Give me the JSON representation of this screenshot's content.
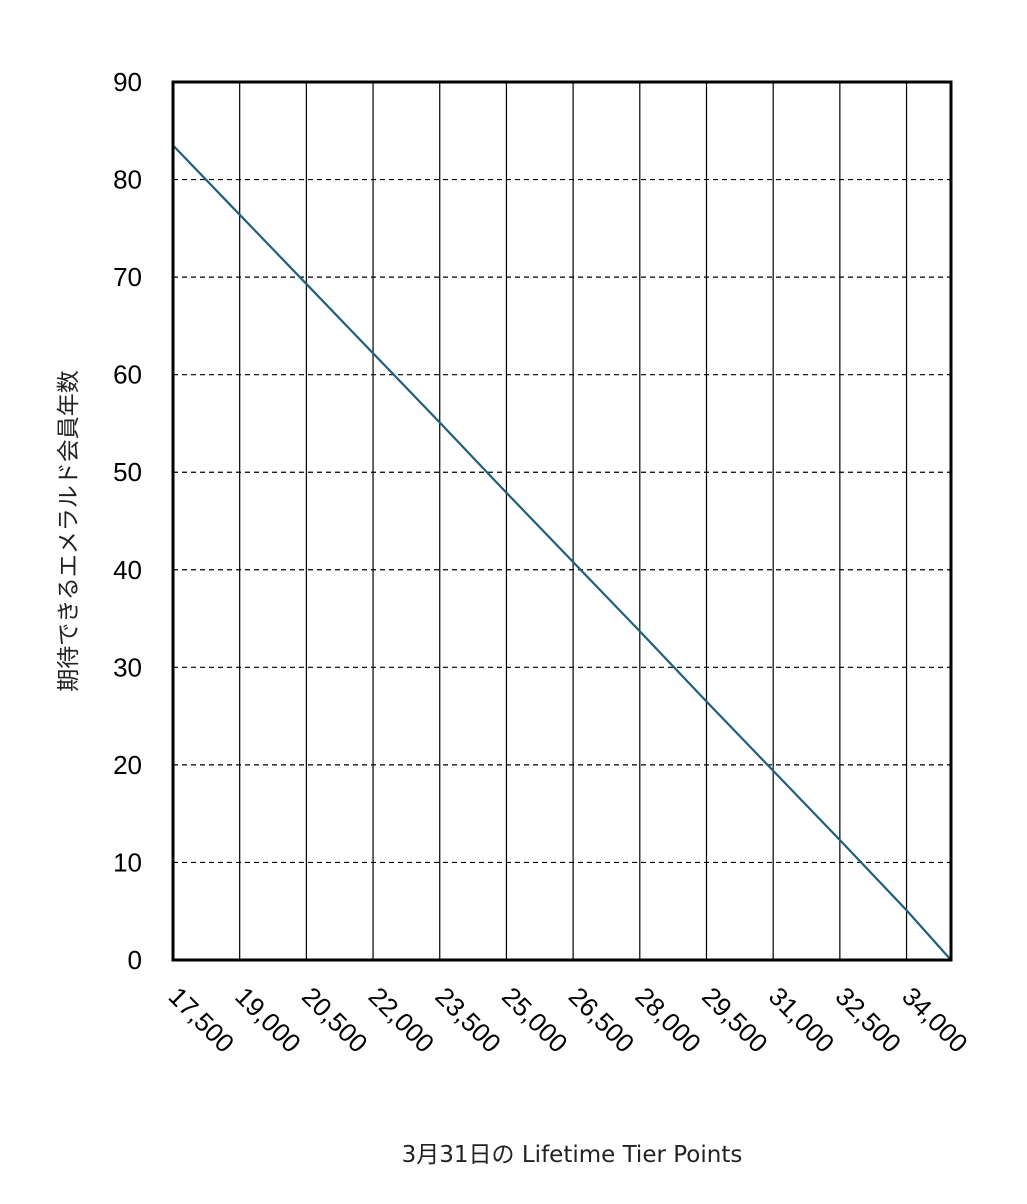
{
  "chart_data": {
    "type": "line",
    "title": "",
    "xlabel": "3月31日の Lifetime Tier Points",
    "ylabel": "期待できるエメラルド会員年数",
    "xlim": [
      17500,
      35000
    ],
    "ylim": [
      0,
      90
    ],
    "x_ticks": [
      17500,
      19000,
      20500,
      22000,
      23500,
      25000,
      26500,
      28000,
      29500,
      31000,
      32500,
      34000
    ],
    "x_tick_labels": [
      "17,500",
      "19,000",
      "20,500",
      "22,000",
      "23,500",
      "25,000",
      "26,500",
      "28,000",
      "29,500",
      "31,000",
      "32,500",
      "34,000"
    ],
    "y_ticks": [
      0,
      10,
      20,
      30,
      40,
      50,
      60,
      70,
      80,
      90
    ],
    "y_tick_labels": [
      "0",
      "10",
      "20",
      "30",
      "40",
      "50",
      "60",
      "70",
      "80",
      "90"
    ],
    "grid": {
      "x": "solid",
      "y": "dashed"
    },
    "legend": "none",
    "series": [
      {
        "color": "#1f5f7a",
        "x": [
          17500,
          19000,
          20500,
          22000,
          23500,
          25000,
          26500,
          28000,
          29500,
          31000,
          32500,
          34000,
          35000
        ],
        "y": [
          83.5,
          76.4,
          69.3,
          62.2,
          55.1,
          47.9,
          40.8,
          33.7,
          26.5,
          19.4,
          12.3,
          5.1,
          0
        ]
      }
    ]
  }
}
